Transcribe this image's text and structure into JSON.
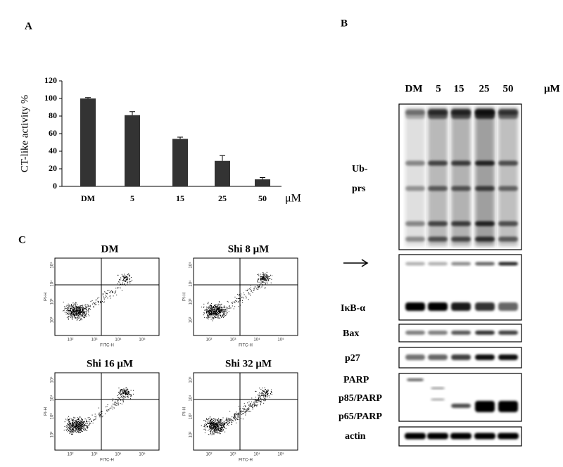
{
  "panel_labels": [
    "A",
    "B",
    "C"
  ],
  "chart_data": {
    "type": "bar",
    "ylabel": "CT-like activity %",
    "categories": [
      "DM",
      "5",
      "15",
      "25",
      "50"
    ],
    "values": [
      100,
      81,
      54,
      29,
      8
    ],
    "errors": [
      1,
      4,
      2,
      6,
      2
    ],
    "x_unit": "μM",
    "color": "#333333",
    "ylim": [
      0,
      120
    ],
    "yticks": [
      0,
      20,
      40,
      60,
      80,
      100,
      120
    ]
  },
  "western_blot": {
    "lanes": [
      "DM",
      "5",
      "15",
      "25",
      "50"
    ],
    "unit": "μM",
    "labels": [
      "Ub-",
      "prs",
      "IκB-α",
      "Bax",
      "p27",
      "PARP",
      "p85/PARP",
      "p65/PARP",
      "actin"
    ]
  },
  "flow_cytometry": {
    "panels": [
      "DM",
      "Shi 8 μM",
      "Shi 16 μM",
      "Shi 32 μM"
    ],
    "x_label": "FITC-H",
    "y_label": "PI-H",
    "ticks": [
      "10²",
      "10³",
      "10⁴",
      "10⁵"
    ]
  }
}
